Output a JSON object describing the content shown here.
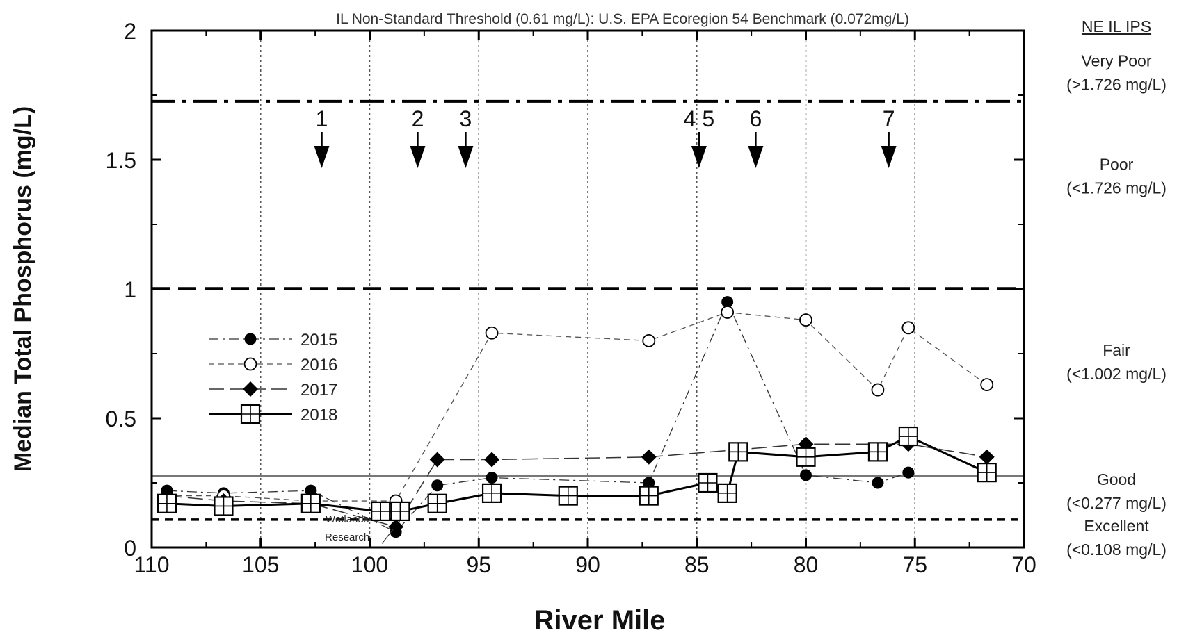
{
  "chart_data": {
    "type": "line",
    "title": "IL Non-Standard Threshold  (0.61 mg/L): U.S. EPA Ecoregion 54 Benchmark (0.072mg/L)",
    "xlabel": "River Mile",
    "ylabel": "Median Total Phosphorus (mg/L)",
    "xlim": [
      110,
      70
    ],
    "ylim": [
      0,
      2
    ],
    "x_ticks": [
      "110",
      "105",
      "100",
      "95",
      "90",
      "85",
      "80",
      "75",
      "70"
    ],
    "y_ticks": [
      "0",
      "0.5",
      "1",
      "1.5",
      "2"
    ],
    "series": [
      {
        "name": "2015",
        "style": "dash-dot, filled circle",
        "x": [
          109.3,
          106.7,
          102.7,
          98.8,
          96.9,
          94.4,
          87.2,
          83.6,
          80.0,
          76.7,
          75.3
        ],
        "y": [
          0.22,
          0.21,
          0.22,
          0.06,
          0.24,
          0.27,
          0.25,
          0.95,
          0.28,
          0.25,
          0.29
        ]
      },
      {
        "name": "2016",
        "style": "dashed, open circle",
        "x": [
          109.3,
          106.7,
          102.7,
          98.8,
          94.4,
          87.2,
          83.6,
          80.0,
          76.7,
          75.3,
          71.7
        ],
        "y": [
          0.2,
          0.2,
          0.18,
          0.18,
          0.83,
          0.8,
          0.91,
          0.88,
          0.61,
          0.85,
          0.63
        ]
      },
      {
        "name": "2017",
        "style": "long dash, filled diamond",
        "x": [
          109.3,
          106.7,
          102.7,
          98.8,
          96.9,
          94.4,
          87.2,
          80.0,
          75.3,
          71.7
        ],
        "y": [
          0.2,
          0.18,
          0.17,
          0.08,
          0.34,
          0.34,
          0.35,
          0.4,
          0.4,
          0.35
        ]
      },
      {
        "name": "2018",
        "style": "solid, boxed square",
        "x": [
          109.3,
          106.7,
          102.7,
          99.5,
          98.6,
          96.9,
          94.4,
          90.9,
          87.2,
          84.5,
          83.6,
          83.1,
          80.0,
          76.7,
          75.3,
          71.7
        ],
        "y": [
          0.17,
          0.16,
          0.17,
          0.14,
          0.14,
          0.17,
          0.21,
          0.2,
          0.2,
          0.25,
          0.21,
          0.37,
          0.35,
          0.37,
          0.43,
          0.29
        ]
      }
    ],
    "reference_lines": [
      {
        "y": 1.726,
        "style": "dash-dot"
      },
      {
        "y": 1.002,
        "style": "long dash"
      },
      {
        "y": 0.277,
        "style": "solid gray"
      },
      {
        "y": 0.108,
        "style": "short dash"
      }
    ],
    "site_markers": [
      {
        "label": "1",
        "x": 102.2
      },
      {
        "label": "2",
        "x": 97.8
      },
      {
        "label": "3",
        "x": 95.6
      },
      {
        "label": "4 5",
        "x": 84.9
      },
      {
        "label": "6",
        "x": 82.3
      },
      {
        "label": "7",
        "x": 76.2
      }
    ],
    "annotation": {
      "text_lines": [
        "Wetlands",
        "Research"
      ],
      "x": 98.8
    },
    "categories_panel": {
      "heading": "NE IL IPS",
      "items": [
        {
          "name": "Very Poor",
          "range": "(>1.726 mg/L)",
          "y": 1.84
        },
        {
          "name": "Poor",
          "range": "(<1.726 mg/L)",
          "y": 1.44
        },
        {
          "name": "Fair",
          "range": "(<1.002 mg/L)",
          "y": 0.72
        },
        {
          "name": "Good",
          "range": "(<0.277 mg/L)",
          "y": 0.22
        },
        {
          "name": "Excellent",
          "range": "(<0.108 mg/L)",
          "y": 0.04
        }
      ]
    },
    "legend_position": "left-center",
    "grid": "vertical dotted at x ticks",
    "colors": {
      "axis": "#000000",
      "good_line": "#777777"
    }
  }
}
